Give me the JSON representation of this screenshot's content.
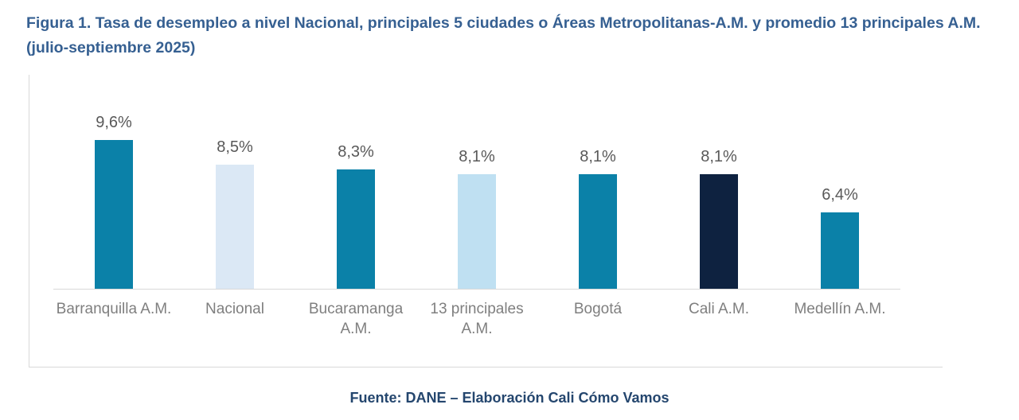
{
  "figure": {
    "title": "Figura 1. Tasa de desempleo a nivel Nacional, principales 5 ciudades o Áreas Metropolitanas-A.M. y promedio 13 principales A.M. (julio-septiembre 2025)",
    "source": "Fuente: DANE – Elaboración Cali Cómo Vamos"
  },
  "colors": {
    "title_text": "#366092",
    "source_text": "#24466e",
    "value_label": "#595959",
    "category_label": "#7f7f7f",
    "axis_line": "#d9d9d9",
    "teal_bar": "#0b81a8",
    "nacional_bar": "#dbe8f5",
    "trece_am_bar": "#bfe0f2",
    "cali_bar": "#0e2240"
  },
  "chart_data": {
    "type": "bar",
    "title": "Tasa de desempleo a nivel Nacional, principales 5 ciudades o Áreas Metropolitanas-A.M. y promedio 13 principales A.M. (julio-septiembre 2025)",
    "categories": [
      "Barranquilla A.M.",
      "Nacional",
      "Bucaramanga A.M.",
      "13 principales A.M.",
      "Bogotá",
      "Cali A.M.",
      "Medellín A.M."
    ],
    "values": [
      9.6,
      8.5,
      8.3,
      8.1,
      8.1,
      8.1,
      6.4
    ],
    "value_labels": [
      "9,6%",
      "8,5%",
      "8,3%",
      "8,1%",
      "8,1%",
      "8,1%",
      "6,4%"
    ],
    "bar_colors": [
      "#0b81a8",
      "#dbe8f5",
      "#0b81a8",
      "#bfe0f2",
      "#0b81a8",
      "#0e2240",
      "#0b81a8"
    ],
    "xlabel": "",
    "ylabel": "",
    "ylim": [
      3,
      10
    ],
    "grid": false,
    "legend": false,
    "data_labels": true
  }
}
